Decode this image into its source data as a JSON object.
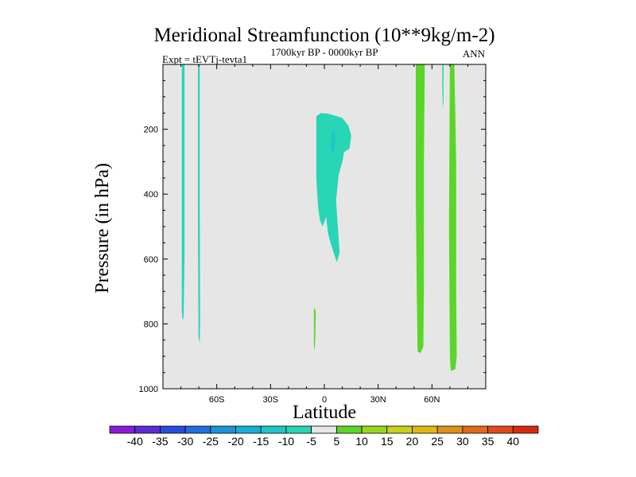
{
  "chart_data": {
    "type": "contour",
    "title": "Meridional Streamfunction (10**9kg/m-2)",
    "left_label": "Expt = tEVTj-tevta1",
    "center_label": "1700kyr BP - 0000kyr BP",
    "right_label": "ANN",
    "xlabel": "Latitude",
    "ylabel": "Pressure (in hPa)",
    "xlim": [
      -90,
      90
    ],
    "ylim": [
      1000,
      0
    ],
    "x_ticks": [
      {
        "value": -60,
        "label": "60S"
      },
      {
        "value": -30,
        "label": "30S"
      },
      {
        "value": 0,
        "label": "0"
      },
      {
        "value": 30,
        "label": "30N"
      },
      {
        "value": 60,
        "label": "60N"
      }
    ],
    "y_ticks": [
      {
        "value": 200,
        "label": "200"
      },
      {
        "value": 400,
        "label": "400"
      },
      {
        "value": 600,
        "label": "600"
      },
      {
        "value": 800,
        "label": "800"
      },
      {
        "value": 1000,
        "label": "1000"
      }
    ],
    "background_color": "#e6e6e6",
    "colorbar": {
      "levels": [
        "-40",
        "-35",
        "-30",
        "-25",
        "-20",
        "-15",
        "-10",
        "-5",
        "5",
        "10",
        "15",
        "20",
        "25",
        "30",
        "35",
        "40"
      ],
      "colors": [
        "#8c1ad9",
        "#5a2dd6",
        "#2a4be0",
        "#1f6fde",
        "#1a93d9",
        "#16b0d3",
        "#1cc6c8",
        "#26d6b4",
        "#e6e6e6",
        "#5ad629",
        "#9ad61c",
        "#c8d21a",
        "#e0b814",
        "#e0901a",
        "#e06a1a",
        "#e04a1a",
        "#d92a10"
      ]
    },
    "regions": [
      {
        "name": "neg-sh-polar-1",
        "color": "#26d6b4",
        "points": [
          [
            -79.5,
            0
          ],
          [
            -78,
            0
          ],
          [
            -78,
            600
          ],
          [
            -78.5,
            780
          ],
          [
            -79,
            790
          ],
          [
            -79.5,
            760
          ],
          [
            -79.5,
            300
          ]
        ]
      },
      {
        "name": "neg-sh-polar-2",
        "color": "#26d6b4",
        "points": [
          [
            -70.5,
            0
          ],
          [
            -69.5,
            0
          ],
          [
            -69.5,
            400
          ],
          [
            -69.3,
            800
          ],
          [
            -69.5,
            860
          ],
          [
            -70.2,
            840
          ],
          [
            -70.5,
            500
          ]
        ]
      },
      {
        "name": "neg-tropical-upper",
        "color": "#26d6b4",
        "points": [
          [
            -4.5,
            160
          ],
          [
            -2,
            150
          ],
          [
            2,
            152
          ],
          [
            6,
            158
          ],
          [
            10,
            165
          ],
          [
            13.5,
            190
          ],
          [
            15,
            220
          ],
          [
            14,
            260
          ],
          [
            11,
            270
          ],
          [
            10,
            300
          ],
          [
            8,
            340
          ],
          [
            6.5,
            420
          ],
          [
            7.5,
            500
          ],
          [
            8.5,
            580
          ],
          [
            7,
            610
          ],
          [
            4,
            560
          ],
          [
            2,
            520
          ],
          [
            1,
            470
          ],
          [
            -1,
            500
          ],
          [
            -2.5,
            480
          ],
          [
            -3.5,
            440
          ],
          [
            -4.5,
            350
          ],
          [
            -4.5,
            250
          ]
        ]
      },
      {
        "name": "neg-tropical-core",
        "color": "#1cc6c8",
        "points": [
          [
            4,
            210
          ],
          [
            5.5,
            200
          ],
          [
            6,
            240
          ],
          [
            5,
            280
          ],
          [
            4,
            260
          ]
        ]
      },
      {
        "name": "neg-np-thin",
        "color": "#26d6b4",
        "points": [
          [
            65.8,
            0
          ],
          [
            66.5,
            0
          ],
          [
            66.4,
            120
          ],
          [
            66.1,
            135
          ],
          [
            65.8,
            80
          ]
        ]
      },
      {
        "name": "pos-np-1",
        "color": "#5ad629",
        "points": [
          [
            51,
            0
          ],
          [
            56,
            0
          ],
          [
            55.5,
            300
          ],
          [
            55.5,
            700
          ],
          [
            55.2,
            870
          ],
          [
            54.5,
            880
          ],
          [
            53.5,
            890
          ],
          [
            52,
            885
          ],
          [
            51.5,
            700
          ],
          [
            51,
            400
          ]
        ]
      },
      {
        "name": "pos-np-2",
        "color": "#5ad629",
        "points": [
          [
            70,
            0
          ],
          [
            72.5,
            0
          ],
          [
            73.5,
            300
          ],
          [
            73.5,
            700
          ],
          [
            73.8,
            900
          ],
          [
            73,
            940
          ],
          [
            70.5,
            945
          ],
          [
            70,
            900
          ],
          [
            69.5,
            500
          ]
        ]
      },
      {
        "name": "pos-tropical-low",
        "color": "#5ad629",
        "points": [
          [
            -5.8,
            750
          ],
          [
            -4.8,
            760
          ],
          [
            -5,
            830
          ],
          [
            -5.3,
            880
          ],
          [
            -5.8,
            870
          ]
        ]
      }
    ]
  }
}
